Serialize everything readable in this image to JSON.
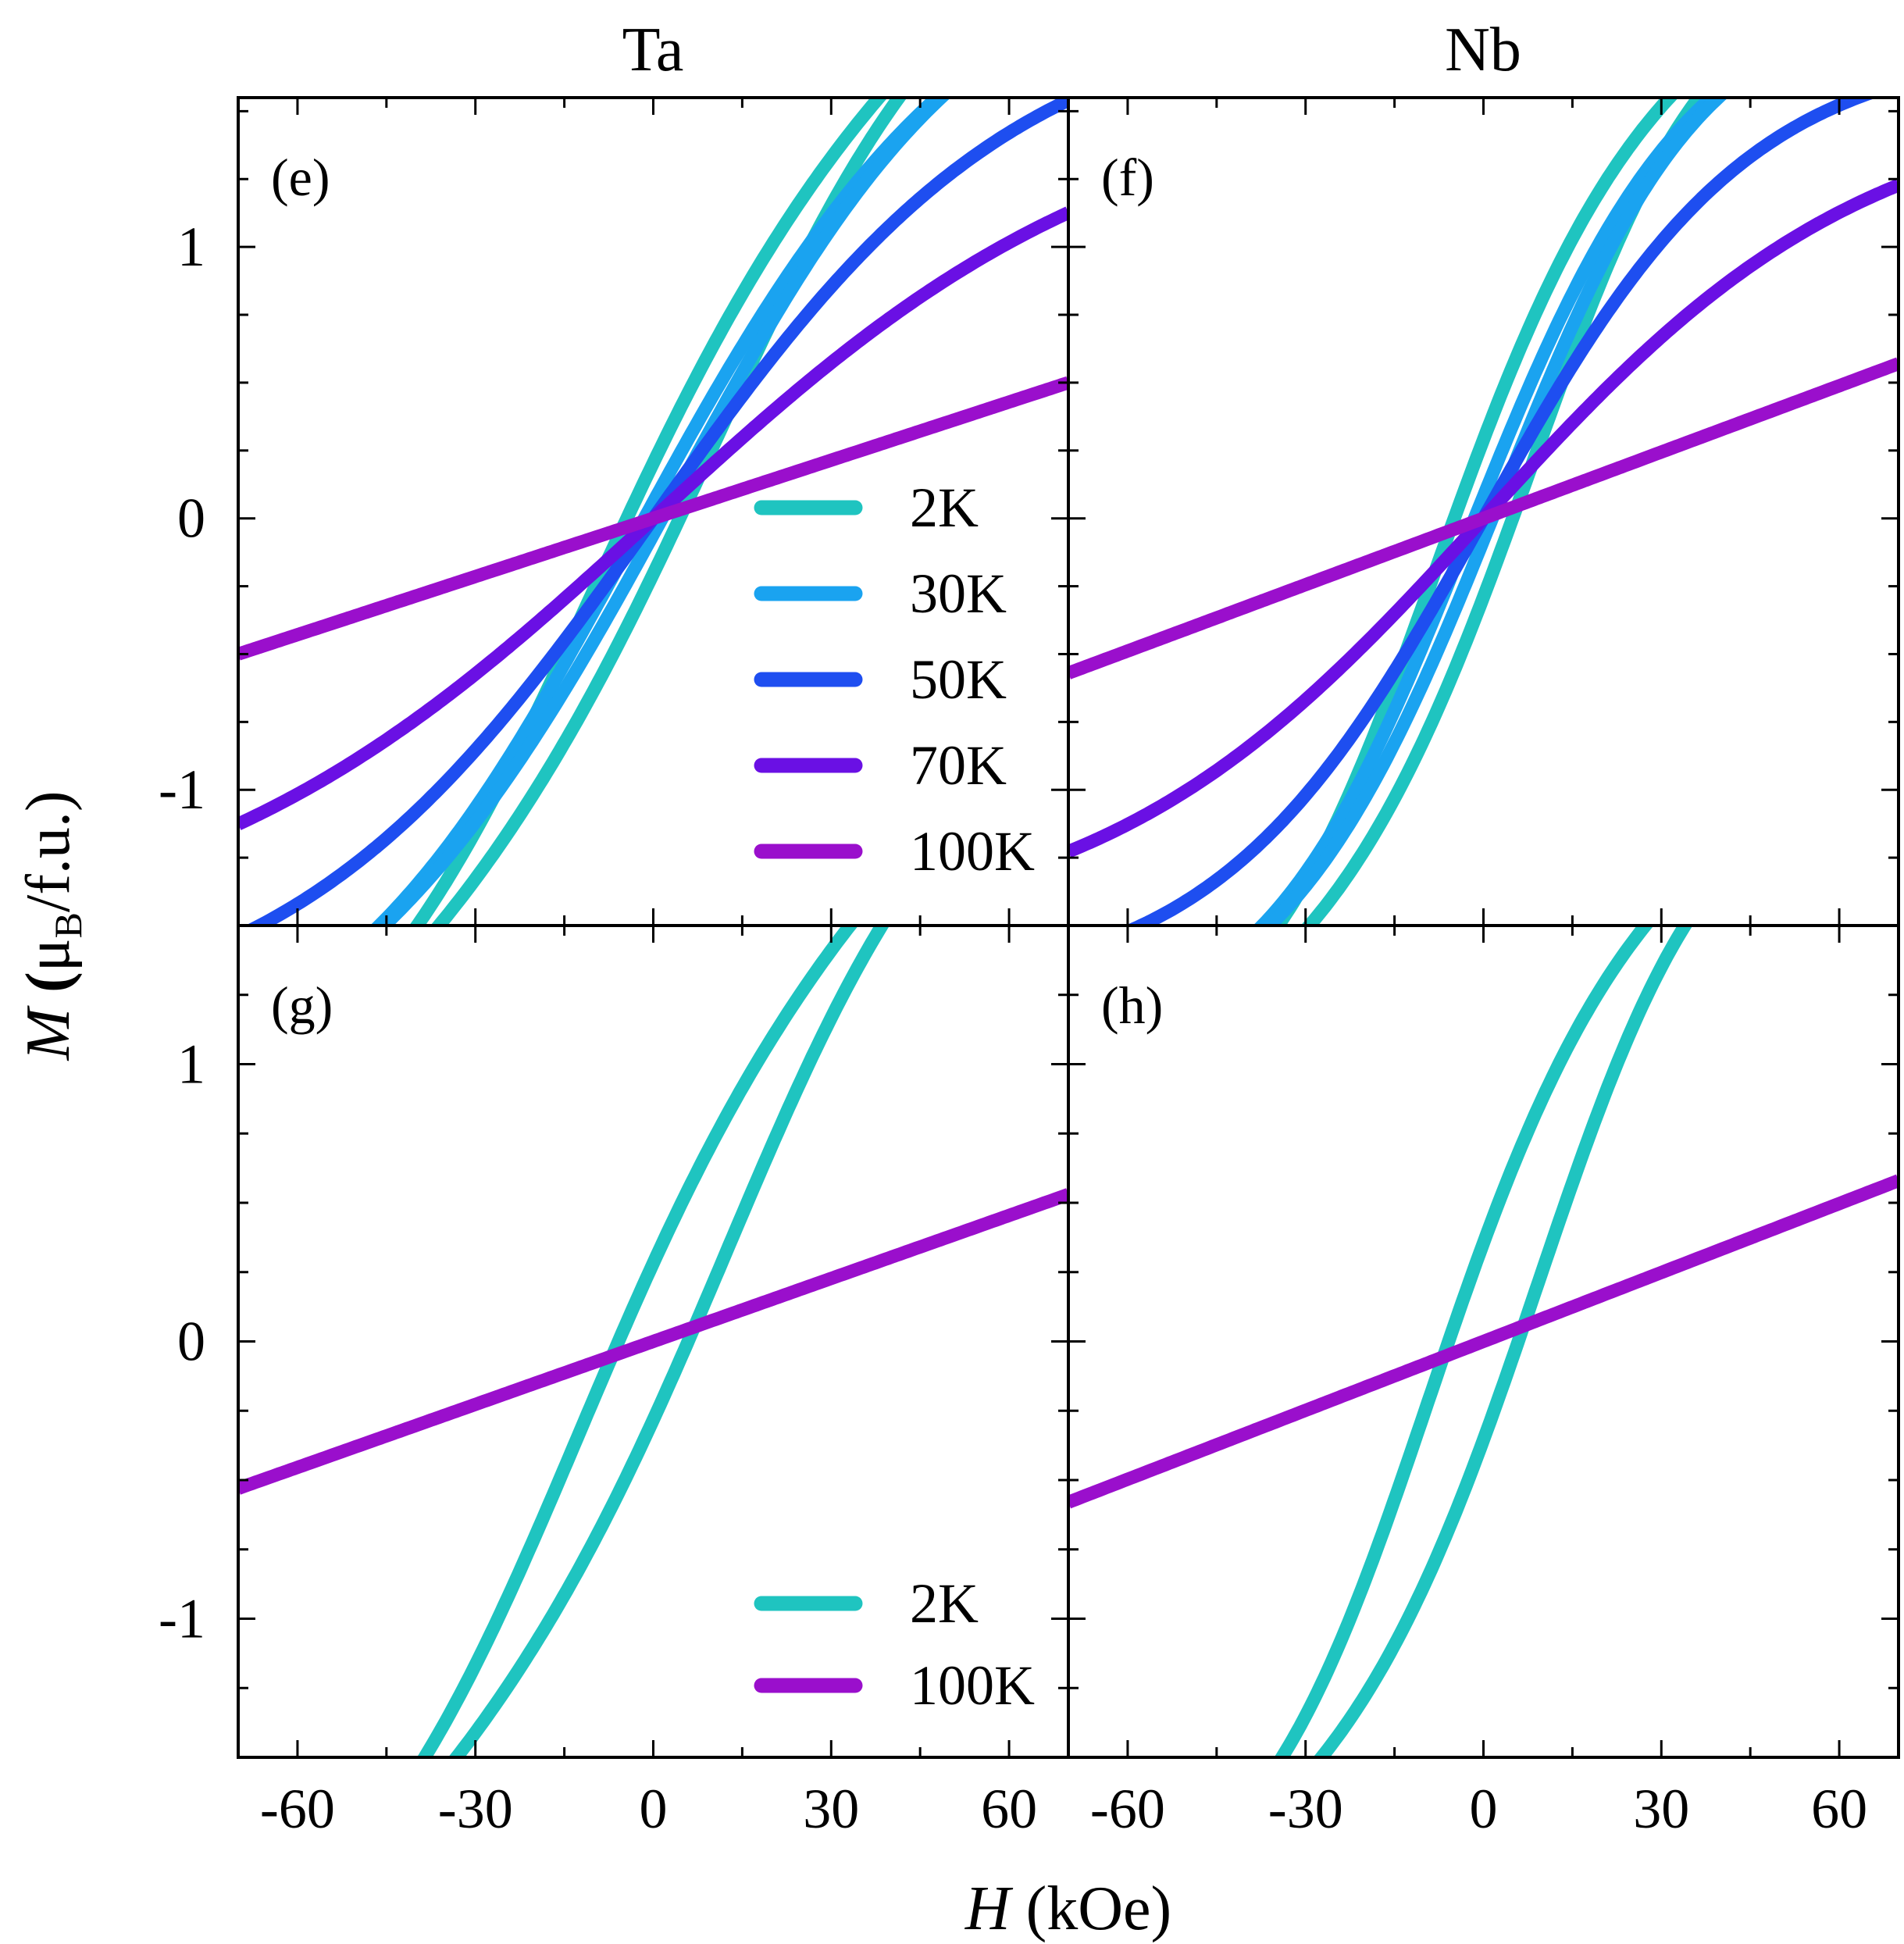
{
  "chart_data": {
    "type": "line",
    "column_titles": [
      "Ta",
      "Nb"
    ],
    "xlabel": {
      "var": "H",
      "unit": "(kOe)"
    },
    "ylabel": {
      "var": "M",
      "open": "(",
      "mu": "μ",
      "sub": "B",
      "rest": "/f.u.)"
    },
    "xlim": [
      -70,
      70
    ],
    "xticks": [
      -60,
      -30,
      0,
      30,
      60
    ],
    "xtick_labels": [
      "-60",
      "-30",
      "0",
      "30",
      "60"
    ],
    "top_row": {
      "ylim": [
        -1.5,
        1.55
      ],
      "yticks": [
        -1,
        0,
        1
      ],
      "ytick_labels": [
        "-1",
        "0",
        "1"
      ]
    },
    "bottom_row": {
      "ylim": [
        -1.5,
        1.5
      ],
      "yticks": [
        -1,
        0,
        1
      ],
      "ytick_labels": [
        "-1",
        "0",
        "1"
      ]
    },
    "panels": [
      {
        "label": "(e)",
        "row": 0,
        "col": 0,
        "series": [
          {
            "name": "2K",
            "color": "#1fc4c0",
            "msat": 2.5,
            "h0": 55,
            "coercivity": 4.5
          },
          {
            "name": "30K",
            "color": "#1aa3f0",
            "msat": 2.2,
            "h0": 55,
            "coercivity": 1.5
          },
          {
            "name": "50K",
            "color": "#1e4ef0",
            "msat": 1.9,
            "h0": 62,
            "coercivity": 0
          },
          {
            "name": "70K",
            "color": "#6a10e4",
            "msat": 1.6,
            "h0": 80,
            "coercivity": 0
          },
          {
            "name": "100K",
            "color": "#9a0fcc",
            "msat": 0.5,
            "h0": 70,
            "coercivity": 0,
            "linear": true
          }
        ],
        "legend": [
          "2K",
          "30K",
          "50K",
          "70K",
          "100K"
        ]
      },
      {
        "label": "(f)",
        "row": 0,
        "col": 1,
        "series": [
          {
            "name": "2K",
            "color": "#1fc4c0",
            "msat": 2.1,
            "h0": 36,
            "coercivity": 5
          },
          {
            "name": "30K",
            "color": "#1aa3f0",
            "msat": 1.95,
            "h0": 36,
            "coercivity": 1.5
          },
          {
            "name": "50K",
            "color": "#1e4ef0",
            "msat": 1.75,
            "h0": 45,
            "coercivity": 0
          },
          {
            "name": "70K",
            "color": "#6a10e4",
            "msat": 1.55,
            "h0": 65,
            "coercivity": 0
          },
          {
            "name": "100K",
            "color": "#9a0fcc",
            "msat": 0.57,
            "h0": 70,
            "coercivity": 0,
            "linear": true
          }
        ]
      },
      {
        "label": "(g)",
        "row": 1,
        "col": 0,
        "series": [
          {
            "name": "2K",
            "color": "#1fc4c0",
            "msat": 2.6,
            "h0": 55,
            "coercivity": 6
          },
          {
            "name": "100K",
            "color": "#9a0fcc",
            "msat": 0.53,
            "h0": 70,
            "coercivity": 0,
            "linear": true
          }
        ],
        "legend": [
          "2K",
          "100K"
        ]
      },
      {
        "label": "(h)",
        "row": 1,
        "col": 1,
        "series": [
          {
            "name": "2K",
            "color": "#1fc4c0",
            "msat": 2.15,
            "h0": 36,
            "coercivity": 6
          },
          {
            "name": "100K",
            "color": "#9a0fcc",
            "msat": 0.58,
            "h0": 70,
            "coercivity": 0,
            "linear": true
          }
        ]
      }
    ]
  }
}
